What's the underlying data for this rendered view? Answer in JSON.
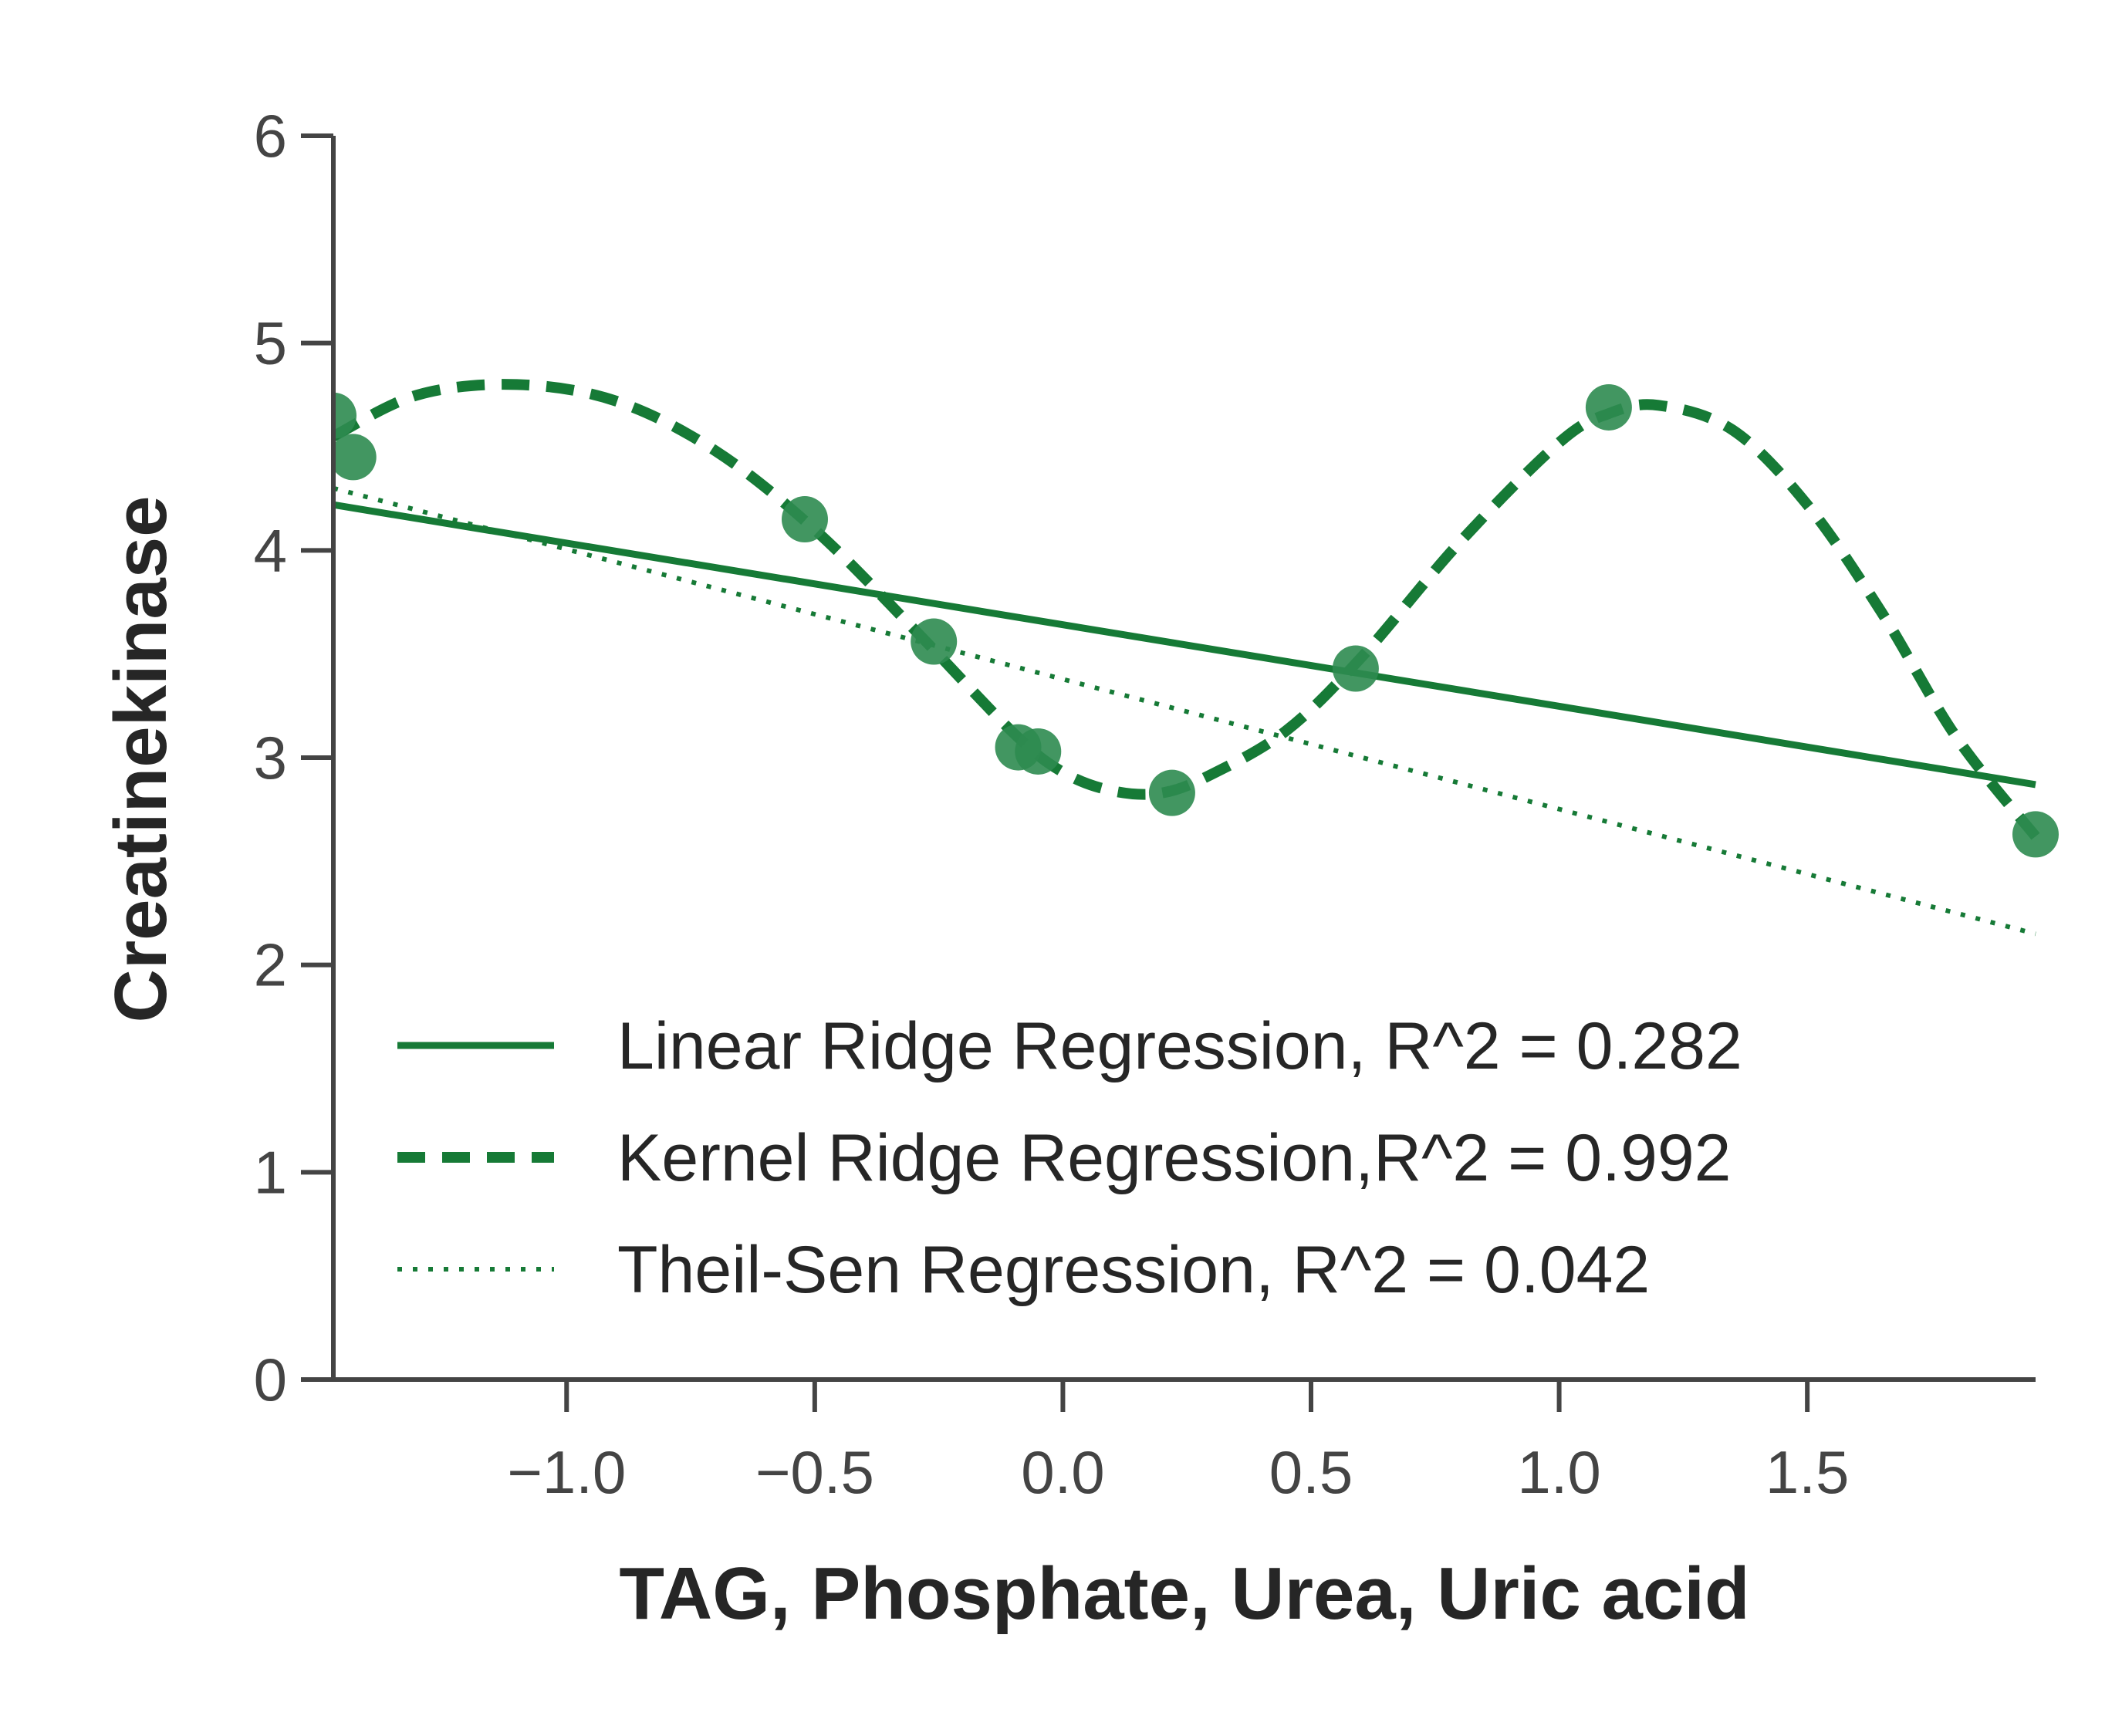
{
  "chart_data": {
    "type": "scatter",
    "xlabel": "TAG, Phosphate, Urea, Uric acid",
    "ylabel": "Creatinekinase",
    "xlim": [
      -1.47,
      1.96
    ],
    "ylim": [
      0,
      6
    ],
    "x_ticks": [
      -1.0,
      -0.5,
      0.0,
      0.5,
      1.0,
      1.5
    ],
    "x_tick_labels": [
      "−1.0",
      "−0.5",
      "0.0",
      "0.5",
      "1.0",
      "1.5"
    ],
    "y_ticks": [
      0,
      1,
      2,
      3,
      4,
      5,
      6
    ],
    "y_tick_labels": [
      "0",
      "1",
      "2",
      "3",
      "4",
      "5",
      "6"
    ],
    "grid": false,
    "legend_position": "lower-left",
    "colors": {
      "line": "#167a36",
      "points": "#2e8b50",
      "axis": "#444444"
    },
    "points": {
      "x": [
        -1.47,
        -1.43,
        -0.52,
        -0.26,
        -0.09,
        -0.05,
        0.22,
        0.59,
        1.1,
        1.96
      ],
      "y": [
        4.65,
        4.45,
        4.15,
        3.56,
        3.05,
        3.03,
        2.83,
        3.43,
        4.69,
        2.63
      ]
    },
    "series": [
      {
        "name": "Linear Ridge Regression, R^2 = 0.282",
        "style": "solid",
        "x": [
          -1.47,
          1.96
        ],
        "y": [
          4.22,
          2.87
        ]
      },
      {
        "name": "Kernel Ridge Regression,R^2 = 0.992",
        "style": "dashed",
        "x": [
          -1.47,
          -1.3,
          -1.1,
          -0.9,
          -0.7,
          -0.5,
          -0.3,
          -0.1,
          0.0,
          0.1,
          0.2,
          0.3,
          0.45,
          0.6,
          0.8,
          1.0,
          1.1,
          1.2,
          1.35,
          1.5,
          1.65,
          1.8,
          1.96
        ],
        "y": [
          4.55,
          4.75,
          4.8,
          4.72,
          4.48,
          4.1,
          3.62,
          3.12,
          2.93,
          2.84,
          2.83,
          2.92,
          3.13,
          3.48,
          4.04,
          4.52,
          4.66,
          4.7,
          4.58,
          4.22,
          3.7,
          3.1,
          2.62
        ]
      },
      {
        "name": "Theil-Sen Regression, R^2 = 0.042",
        "style": "dotted",
        "x": [
          -1.47,
          1.96
        ],
        "y": [
          4.3,
          2.15
        ]
      }
    ]
  }
}
